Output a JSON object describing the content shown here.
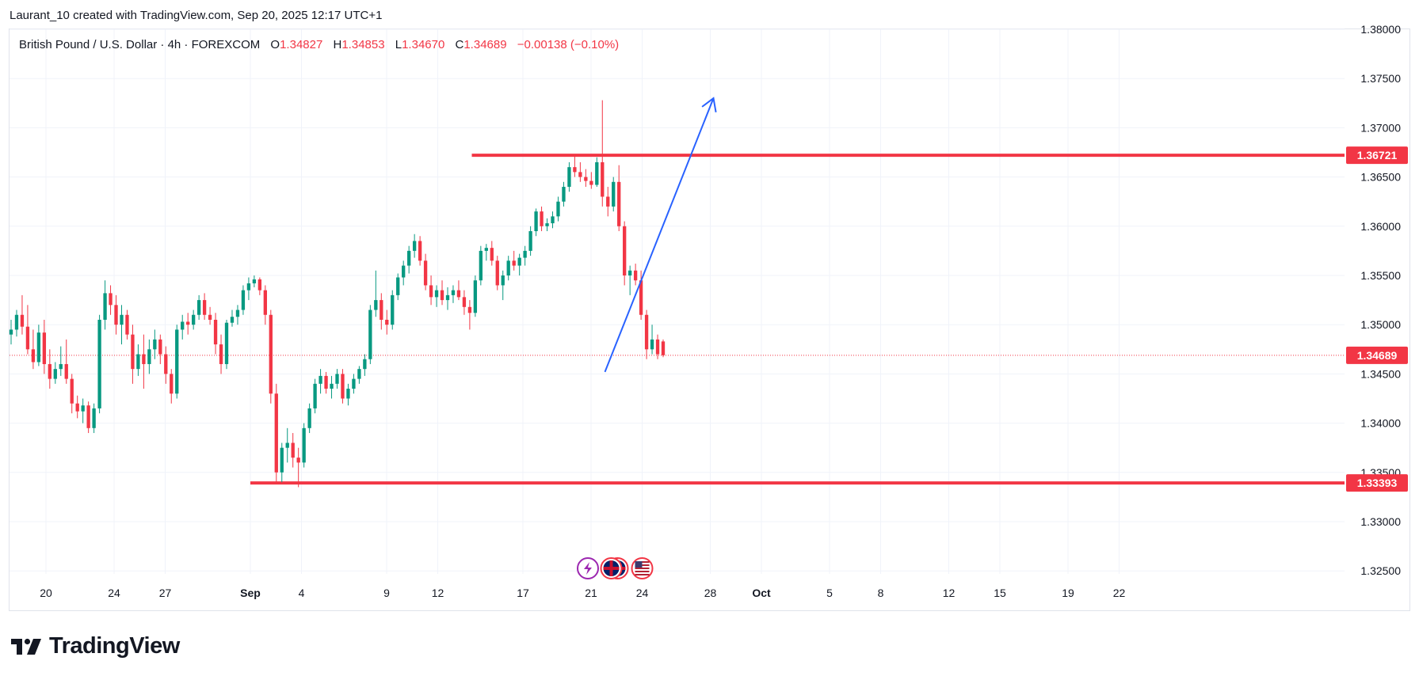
{
  "header": {
    "credit": "Laurant_10 created with TradingView.com, Sep 20, 2025 12:17 UTC+1"
  },
  "legend": {
    "symbol": "British Pound / U.S. Dollar · 4h · FOREXCOM",
    "open_label": "O",
    "open": "1.34827",
    "high_label": "H",
    "high": "1.34853",
    "low_label": "L",
    "low": "1.34670",
    "close_label": "C",
    "close": "1.34689",
    "change": "−0.00138 (−0.10%)"
  },
  "colors": {
    "up": "#089981",
    "down": "#f23645",
    "level_line": "#f23645",
    "arrow": "#2962ff",
    "grid": "#f0f3fa",
    "text": "#131722"
  },
  "icons": [
    "dividend-bolt-icon",
    "uk-flag-icon",
    "us-flag-icon"
  ],
  "brand": {
    "name": "TradingView"
  },
  "chart_data": {
    "type": "candlestick",
    "timeframe": "4h",
    "y_range": [
      1.3225,
      1.3805
    ],
    "y_ticks": [
      "1.38000",
      "1.37500",
      "1.37000",
      "1.36500",
      "1.36000",
      "1.35500",
      "1.35000",
      "1.34500",
      "1.34000",
      "1.33500",
      "1.33000",
      "1.32500"
    ],
    "x_ticks": [
      {
        "label": "20",
        "date": "2025-08-20"
      },
      {
        "label": "24",
        "date": "2025-08-24"
      },
      {
        "label": "27",
        "date": "2025-08-27"
      },
      {
        "label": "Sep",
        "date": "2025-09-01",
        "bold": true
      },
      {
        "label": "4",
        "date": "2025-09-04"
      },
      {
        "label": "9",
        "date": "2025-09-09"
      },
      {
        "label": "12",
        "date": "2025-09-12"
      },
      {
        "label": "17",
        "date": "2025-09-17"
      },
      {
        "label": "21",
        "date": "2025-09-21"
      },
      {
        "label": "24",
        "date": "2025-09-24"
      },
      {
        "label": "28",
        "date": "2025-09-28"
      },
      {
        "label": "Oct",
        "date": "2025-10-01",
        "bold": true
      },
      {
        "label": "5",
        "date": "2025-10-05"
      },
      {
        "label": "8",
        "date": "2025-10-08"
      },
      {
        "label": "12",
        "date": "2025-10-12"
      },
      {
        "label": "15",
        "date": "2025-10-15"
      },
      {
        "label": "19",
        "date": "2025-10-19"
      },
      {
        "label": "22",
        "date": "2025-10-22"
      }
    ],
    "current_price": {
      "value": 1.34689,
      "label": "1.34689"
    },
    "horizontal_levels": [
      {
        "value": 1.36721,
        "label": "1.36721",
        "from_date": "2025-09-14"
      },
      {
        "value": 1.33393,
        "label": "1.33393",
        "from_date": "2025-09-01"
      }
    ],
    "arrow": {
      "from": {
        "date": "2025-09-22",
        "price": 1.3452
      },
      "to": {
        "date": "2025-09-28",
        "price": 1.373
      }
    },
    "event_markers": [
      {
        "date": "2025-09-21",
        "icon": "dividend-bolt-icon"
      },
      {
        "date": "2025-09-22",
        "icon": "uk-flag-icon"
      },
      {
        "date": "2025-09-24",
        "icon": "us-flag-icon"
      }
    ],
    "candles": [
      [
        1.349,
        1.3505,
        1.348,
        1.3495
      ],
      [
        1.3495,
        1.3515,
        1.3488,
        1.351
      ],
      [
        1.351,
        1.353,
        1.349,
        1.3498
      ],
      [
        1.3498,
        1.352,
        1.347,
        1.3475
      ],
      [
        1.3475,
        1.3495,
        1.3455,
        1.3462
      ],
      [
        1.3462,
        1.35,
        1.3458,
        1.3492
      ],
      [
        1.3492,
        1.3505,
        1.345,
        1.346
      ],
      [
        1.346,
        1.3475,
        1.3435,
        1.3445
      ],
      [
        1.3445,
        1.3462,
        1.344,
        1.3455
      ],
      [
        1.3455,
        1.3478,
        1.3448,
        1.346
      ],
      [
        1.346,
        1.3485,
        1.344,
        1.3445
      ],
      [
        1.3445,
        1.345,
        1.341,
        1.342
      ],
      [
        1.342,
        1.3428,
        1.3405,
        1.3412
      ],
      [
        1.3412,
        1.3425,
        1.34,
        1.3418
      ],
      [
        1.3418,
        1.3422,
        1.339,
        1.3395
      ],
      [
        1.3395,
        1.342,
        1.339,
        1.3415
      ],
      [
        1.3415,
        1.351,
        1.341,
        1.3505
      ],
      [
        1.3505,
        1.3545,
        1.3495,
        1.3532
      ],
      [
        1.3532,
        1.354,
        1.351,
        1.352
      ],
      [
        1.352,
        1.353,
        1.349,
        1.35
      ],
      [
        1.35,
        1.352,
        1.348,
        1.351
      ],
      [
        1.351,
        1.3515,
        1.3485,
        1.349
      ],
      [
        1.349,
        1.35,
        1.344,
        1.3455
      ],
      [
        1.3455,
        1.348,
        1.3448,
        1.347
      ],
      [
        1.347,
        1.349,
        1.3435,
        1.346
      ],
      [
        1.346,
        1.3485,
        1.345,
        1.3475
      ],
      [
        1.3475,
        1.3495,
        1.3465,
        1.3485
      ],
      [
        1.3485,
        1.349,
        1.346,
        1.347
      ],
      [
        1.347,
        1.3478,
        1.344,
        1.345
      ],
      [
        1.345,
        1.3455,
        1.342,
        1.343
      ],
      [
        1.343,
        1.35,
        1.3425,
        1.3495
      ],
      [
        1.3495,
        1.351,
        1.3485,
        1.3503
      ],
      [
        1.3503,
        1.3512,
        1.349,
        1.35
      ],
      [
        1.35,
        1.3515,
        1.3495,
        1.351
      ],
      [
        1.351,
        1.353,
        1.3505,
        1.3525
      ],
      [
        1.3525,
        1.3532,
        1.3505,
        1.351
      ],
      [
        1.351,
        1.3518,
        1.35,
        1.3505
      ],
      [
        1.3505,
        1.3512,
        1.347,
        1.348
      ],
      [
        1.348,
        1.349,
        1.345,
        1.346
      ],
      [
        1.346,
        1.3505,
        1.3455,
        1.3502
      ],
      [
        1.3502,
        1.3515,
        1.3498,
        1.3508
      ],
      [
        1.3508,
        1.352,
        1.35,
        1.3515
      ],
      [
        1.3515,
        1.354,
        1.351,
        1.3535
      ],
      [
        1.3535,
        1.3548,
        1.3525,
        1.3542
      ],
      [
        1.3542,
        1.355,
        1.3538,
        1.3546
      ],
      [
        1.3546,
        1.3548,
        1.353,
        1.3535
      ],
      [
        1.3535,
        1.354,
        1.35,
        1.351
      ],
      [
        1.351,
        1.3515,
        1.342,
        1.343
      ],
      [
        1.343,
        1.344,
        1.334,
        1.335
      ],
      [
        1.335,
        1.338,
        1.334,
        1.3375
      ],
      [
        1.3375,
        1.3395,
        1.336,
        1.338
      ],
      [
        1.338,
        1.339,
        1.3355,
        1.3365
      ],
      [
        1.3365,
        1.3375,
        1.3335,
        1.336
      ],
      [
        1.336,
        1.34,
        1.3355,
        1.3395
      ],
      [
        1.3395,
        1.342,
        1.339,
        1.3415
      ],
      [
        1.3415,
        1.3445,
        1.341,
        1.344
      ],
      [
        1.344,
        1.3455,
        1.343,
        1.3448
      ],
      [
        1.3448,
        1.3452,
        1.343,
        1.3435
      ],
      [
        1.3435,
        1.3448,
        1.3425,
        1.344
      ],
      [
        1.344,
        1.3455,
        1.3435,
        1.345
      ],
      [
        1.345,
        1.3455,
        1.342,
        1.3425
      ],
      [
        1.3425,
        1.344,
        1.3418,
        1.3435
      ],
      [
        1.3435,
        1.345,
        1.343,
        1.3445
      ],
      [
        1.3445,
        1.3458,
        1.344,
        1.3455
      ],
      [
        1.3455,
        1.347,
        1.3448,
        1.3465
      ],
      [
        1.3465,
        1.352,
        1.346,
        1.3515
      ],
      [
        1.3515,
        1.3555,
        1.3508,
        1.3525
      ],
      [
        1.3525,
        1.3532,
        1.3495,
        1.3505
      ],
      [
        1.3505,
        1.3515,
        1.349,
        1.35
      ],
      [
        1.35,
        1.3535,
        1.3495,
        1.353
      ],
      [
        1.353,
        1.3552,
        1.3525,
        1.3548
      ],
      [
        1.3548,
        1.3565,
        1.354,
        1.356
      ],
      [
        1.356,
        1.358,
        1.3552,
        1.3575
      ],
      [
        1.3575,
        1.3592,
        1.3568,
        1.3585
      ],
      [
        1.3585,
        1.359,
        1.356,
        1.3565
      ],
      [
        1.3565,
        1.3572,
        1.3535,
        1.354
      ],
      [
        1.354,
        1.355,
        1.352,
        1.3528
      ],
      [
        1.3528,
        1.354,
        1.3518,
        1.3535
      ],
      [
        1.3535,
        1.3545,
        1.352,
        1.3525
      ],
      [
        1.3525,
        1.3538,
        1.3515,
        1.353
      ],
      [
        1.353,
        1.354,
        1.3522,
        1.3535
      ],
      [
        1.3535,
        1.3545,
        1.3525,
        1.3528
      ],
      [
        1.3528,
        1.3535,
        1.351,
        1.3518
      ],
      [
        1.3518,
        1.3525,
        1.3495,
        1.3512
      ],
      [
        1.3512,
        1.355,
        1.3508,
        1.3545
      ],
      [
        1.3545,
        1.358,
        1.354,
        1.3575
      ],
      [
        1.3575,
        1.3582,
        1.3565,
        1.3578
      ],
      [
        1.3578,
        1.3585,
        1.356,
        1.3565
      ],
      [
        1.3565,
        1.357,
        1.3535,
        1.354
      ],
      [
        1.354,
        1.3555,
        1.3525,
        1.355
      ],
      [
        1.355,
        1.357,
        1.3545,
        1.3565
      ],
      [
        1.3565,
        1.3575,
        1.3555,
        1.356
      ],
      [
        1.356,
        1.3572,
        1.355,
        1.3568
      ],
      [
        1.3568,
        1.358,
        1.356,
        1.3575
      ],
      [
        1.3575,
        1.36,
        1.357,
        1.3595
      ],
      [
        1.3595,
        1.3618,
        1.359,
        1.3615
      ],
      [
        1.3615,
        1.362,
        1.3595,
        1.36
      ],
      [
        1.36,
        1.3608,
        1.3595,
        1.3603
      ],
      [
        1.3603,
        1.3615,
        1.3598,
        1.361
      ],
      [
        1.361,
        1.363,
        1.3605,
        1.3625
      ],
      [
        1.3625,
        1.3645,
        1.362,
        1.364
      ],
      [
        1.364,
        1.3665,
        1.3635,
        1.366
      ],
      [
        1.366,
        1.3672,
        1.365,
        1.3655
      ],
      [
        1.3655,
        1.3665,
        1.3645,
        1.365
      ],
      [
        1.365,
        1.3658,
        1.364,
        1.3646
      ],
      [
        1.3646,
        1.3655,
        1.3638,
        1.3642
      ],
      [
        1.3642,
        1.367,
        1.364,
        1.3665
      ],
      [
        1.3665,
        1.3728,
        1.362,
        1.363
      ],
      [
        1.363,
        1.364,
        1.361,
        1.362
      ],
      [
        1.362,
        1.365,
        1.3615,
        1.3645
      ],
      [
        1.3645,
        1.3662,
        1.3595,
        1.36
      ],
      [
        1.36,
        1.3605,
        1.354,
        1.355
      ],
      [
        1.355,
        1.356,
        1.353,
        1.3555
      ],
      [
        1.3555,
        1.3562,
        1.354,
        1.3545
      ],
      [
        1.3545,
        1.3555,
        1.3505,
        1.351
      ],
      [
        1.351,
        1.3515,
        1.3465,
        1.3475
      ],
      [
        1.3475,
        1.35,
        1.347,
        1.3485
      ],
      [
        1.3485,
        1.349,
        1.3465,
        1.347
      ],
      [
        1.3483,
        1.3485,
        1.3467,
        1.3469
      ]
    ]
  }
}
